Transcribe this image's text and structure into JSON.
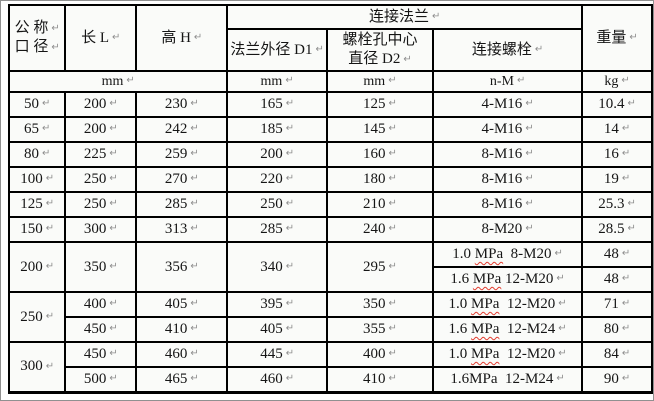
{
  "marks": {
    "pilcrow": "↵"
  },
  "header": {
    "diameter_line1": "公 称",
    "diameter_line2": "口 径",
    "length": "长 L",
    "height": "高 H",
    "flange_group": "连接法兰",
    "flange_od": "法兰外径 D1",
    "bolt_circle_line1": "螺栓孔中心",
    "bolt_circle_line2": "直径 D2",
    "bolts": "连接螺栓",
    "weight": "重量"
  },
  "units": {
    "dimensions": "mm",
    "flange_od": "mm",
    "bolt_circle": "mm",
    "bolts": "n-M",
    "weight": "kg"
  },
  "colors": {
    "border": "#000000",
    "text": "#151515",
    "paragraph_mark": "#8e8e8e",
    "spellcheck_squiggle": "#e23b2e",
    "cell_background": "#fafbf9",
    "frame": "#909090"
  },
  "table": {
    "column_names": [
      "nominal-diameter",
      "length",
      "height",
      "flange-od",
      "bolt-circle",
      "bolts",
      "weight"
    ],
    "rows": [
      {
        "cells": [
          {
            "text": "50"
          },
          {
            "text": "200"
          },
          {
            "text": "230"
          },
          {
            "text": "165"
          },
          {
            "text": "125"
          },
          {
            "text": "4-M16"
          },
          {
            "text": "10.4"
          }
        ]
      },
      {
        "cells": [
          {
            "text": "65"
          },
          {
            "text": "200"
          },
          {
            "text": "242"
          },
          {
            "text": "185"
          },
          {
            "text": "145"
          },
          {
            "text": "4-M16"
          },
          {
            "text": "14"
          }
        ]
      },
      {
        "cells": [
          {
            "text": "80"
          },
          {
            "text": "225"
          },
          {
            "text": "259"
          },
          {
            "text": "200"
          },
          {
            "text": "160"
          },
          {
            "text": "8-M16"
          },
          {
            "text": "16"
          }
        ]
      },
      {
        "cells": [
          {
            "text": "100"
          },
          {
            "text": "250"
          },
          {
            "text": "270"
          },
          {
            "text": "220"
          },
          {
            "text": "180"
          },
          {
            "text": "8-M16"
          },
          {
            "text": "19"
          }
        ]
      },
      {
        "cells": [
          {
            "text": "125"
          },
          {
            "text": "250"
          },
          {
            "text": "285"
          },
          {
            "text": "250"
          },
          {
            "text": "210"
          },
          {
            "text": "8-M16"
          },
          {
            "text": "25.3"
          }
        ]
      },
      {
        "cells": [
          {
            "text": "150"
          },
          {
            "text": "300"
          },
          {
            "text": "313"
          },
          {
            "text": "285"
          },
          {
            "text": "240"
          },
          {
            "text": "8-M20"
          },
          {
            "text": "28.5"
          }
        ]
      },
      {
        "cells": [
          {
            "text": "200",
            "rowspan": 2
          },
          {
            "text": "350",
            "rowspan": 2
          },
          {
            "text": "356",
            "rowspan": 2
          },
          {
            "text": "340",
            "rowspan": 2
          },
          {
            "text": "295",
            "rowspan": 2
          },
          {
            "prefix": "1.0 ",
            "highlight": "MPa",
            "suffix": "  8-M20",
            "misspelled": true
          },
          {
            "text": "48"
          }
        ]
      },
      {
        "cells": [
          {
            "prefix": "1.6 ",
            "highlight": "MPa",
            "suffix": " 12-M20",
            "misspelled": true
          },
          {
            "text": "48"
          }
        ]
      },
      {
        "cells": [
          {
            "text": "250",
            "rowspan": 2
          },
          {
            "text": "400"
          },
          {
            "text": "405"
          },
          {
            "text": "395"
          },
          {
            "text": "350"
          },
          {
            "prefix": "1.0 ",
            "highlight": "MPa",
            "suffix": "  12-M20",
            "misspelled": true
          },
          {
            "text": "71"
          }
        ]
      },
      {
        "cells": [
          {
            "text": "450"
          },
          {
            "text": "410"
          },
          {
            "text": "405"
          },
          {
            "text": "355"
          },
          {
            "prefix": "1.6 ",
            "highlight": "MPa",
            "suffix": "  12-M24",
            "misspelled": true
          },
          {
            "text": "80"
          }
        ]
      },
      {
        "cells": [
          {
            "text": "300",
            "rowspan": 2
          },
          {
            "text": "450"
          },
          {
            "text": "460"
          },
          {
            "text": "445"
          },
          {
            "text": "400"
          },
          {
            "prefix": "1.0 ",
            "highlight": "MPa",
            "suffix": "  12-M20",
            "misspelled": true
          },
          {
            "text": "84"
          }
        ]
      },
      {
        "cells": [
          {
            "text": "500"
          },
          {
            "text": "465"
          },
          {
            "text": "460"
          },
          {
            "text": "410"
          },
          {
            "prefix": "1.6",
            "highlight": "MPa",
            "suffix": "  12-M24",
            "misspelled": false
          },
          {
            "text": "90"
          }
        ]
      }
    ]
  }
}
